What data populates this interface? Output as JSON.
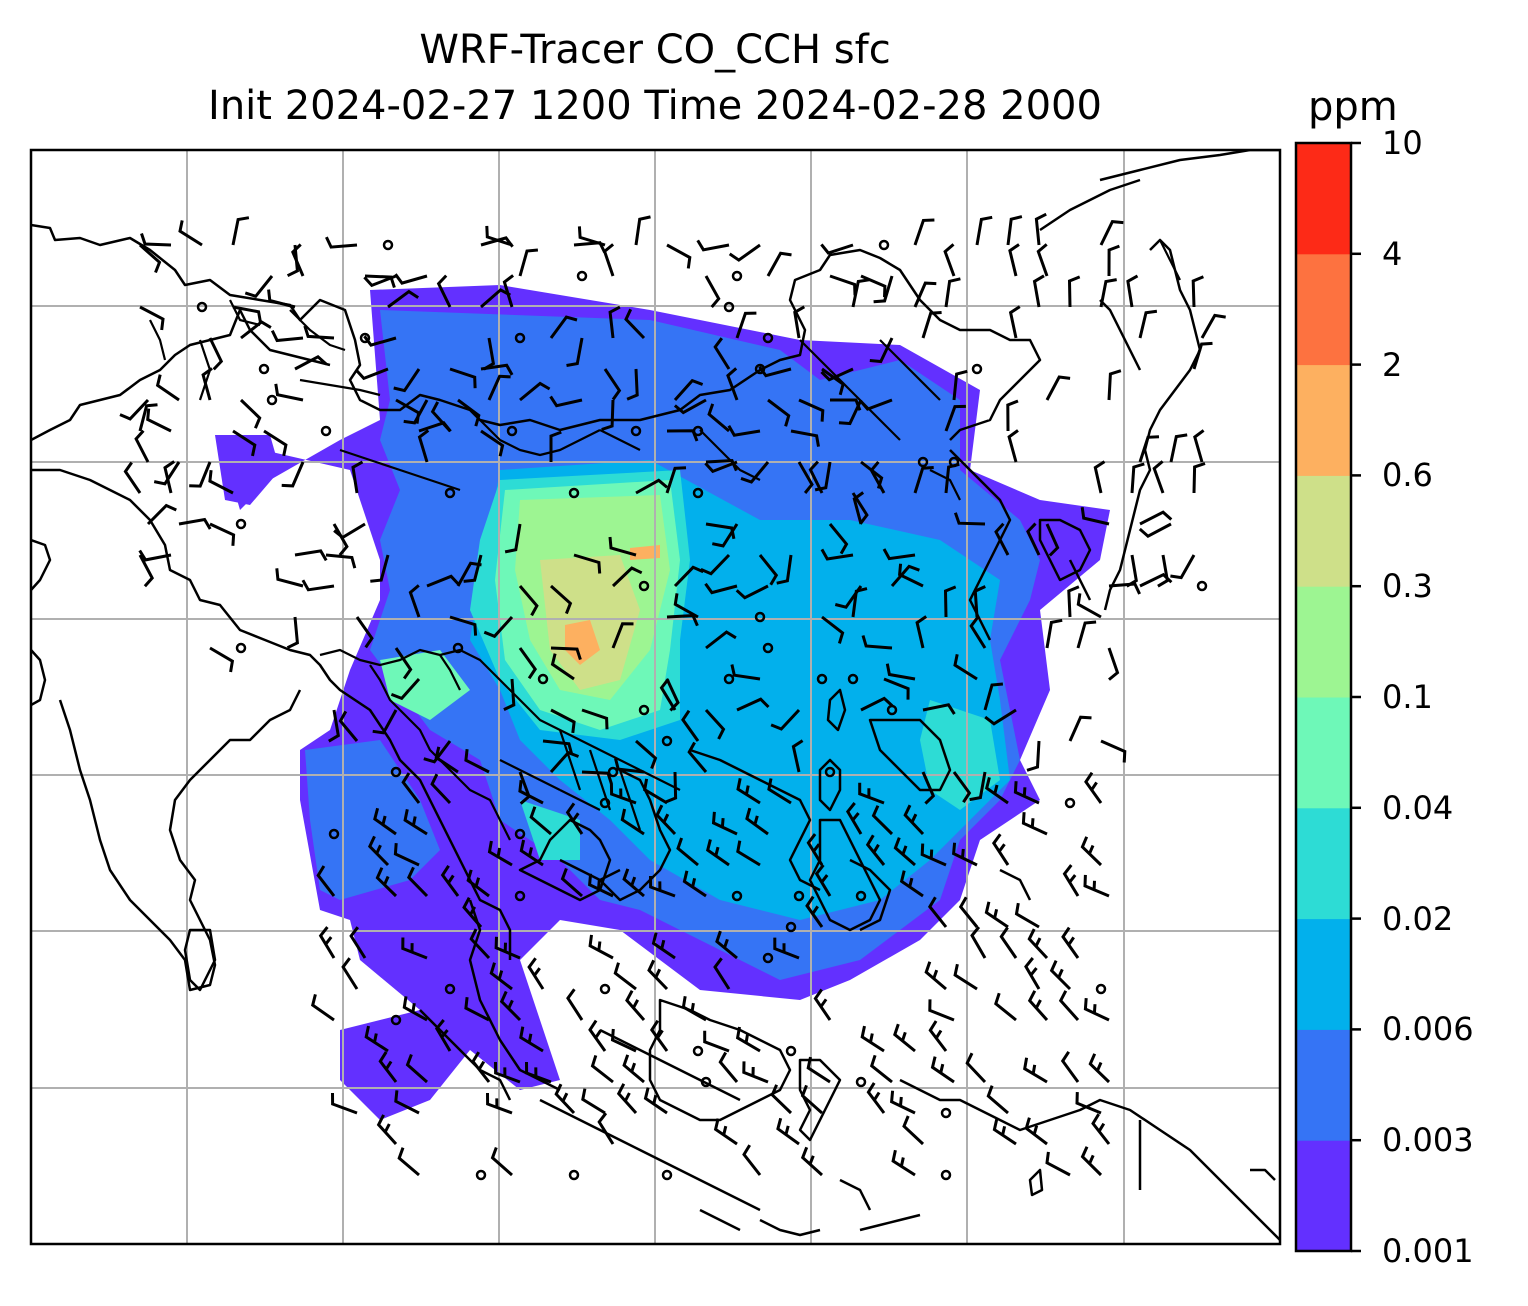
{
  "title": {
    "line1": "WRF-Tracer CO_CCH sfc",
    "line2": "Init 2024-02-27 1200 Time 2024-02-28 2000"
  },
  "colorbar": {
    "unit": "ppm",
    "levels": [
      "0.001",
      "0.003",
      "0.006",
      "0.02",
      "0.04",
      "0.1",
      "0.3",
      "0.6",
      "2",
      "4",
      "10"
    ],
    "colors": [
      "#6330ff",
      "#3574f5",
      "#02b0ec",
      "#2ddcd5",
      "#6ef8b8",
      "#9df592",
      "#cee089",
      "#fdb060",
      "#fd7240",
      "#fd2a17"
    ]
  },
  "map": {
    "gridlines": true,
    "gridline_color": "#b0b0b0",
    "coastline_color": "#000000",
    "features": [
      "coastlines",
      "country borders",
      "wind barbs",
      "calm-wind circles"
    ]
  }
}
